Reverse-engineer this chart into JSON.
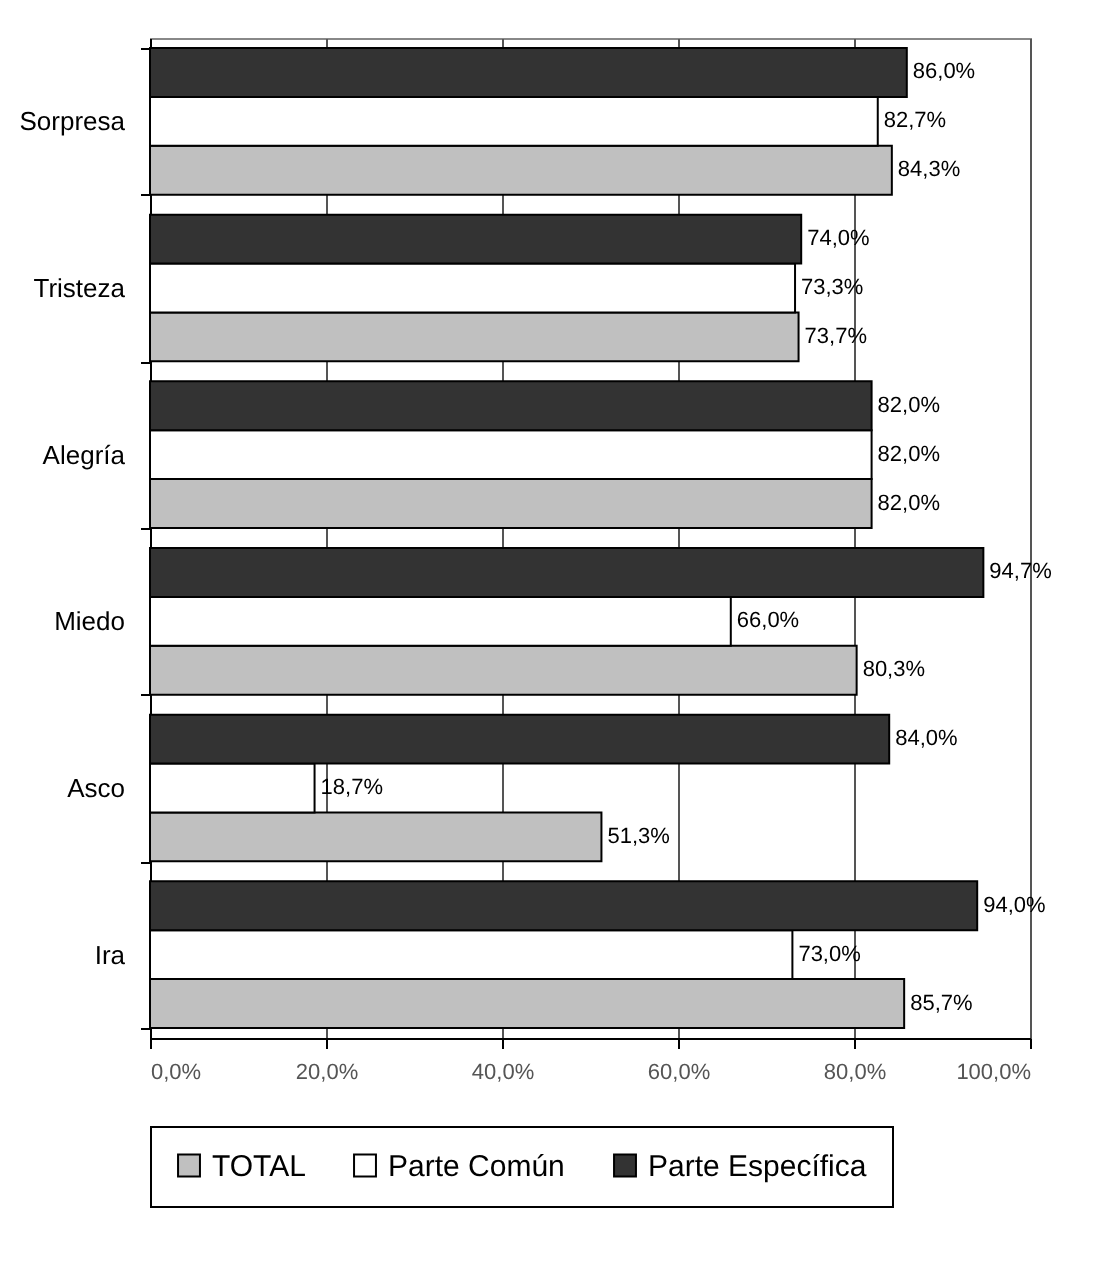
{
  "chart_data": {
    "type": "bar",
    "orientation": "horizontal",
    "categories": [
      "Sorpresa",
      "Tristeza",
      "Alegría",
      "Miedo",
      "Asco",
      "Ira"
    ],
    "series": [
      {
        "name": "TOTAL",
        "color": "#c0c0c0",
        "values": [
          84.3,
          73.7,
          82.0,
          80.3,
          51.3,
          85.7
        ],
        "value_labels": [
          "84,3%",
          "73,7%",
          "82,0%",
          "80,3%",
          "51,3%",
          "85,7%"
        ]
      },
      {
        "name": "Parte Común",
        "color": "#ffffff",
        "values": [
          82.7,
          73.3,
          82.0,
          66.0,
          18.7,
          73.0
        ],
        "value_labels": [
          "82,7%",
          "73,3%",
          "82,0%",
          "66,0%",
          "18,7%",
          "73,0%"
        ]
      },
      {
        "name": "Parte Específica",
        "color": "#333333",
        "values": [
          86.0,
          74.0,
          82.0,
          94.7,
          84.0,
          94.0
        ],
        "value_labels": [
          "86,0%",
          "74,0%",
          "82,0%",
          "94,7%",
          "84,0%",
          "94,0%"
        ]
      }
    ],
    "xlim": [
      0,
      100
    ],
    "xticks": [
      {
        "value": 0,
        "label": "0,0%"
      },
      {
        "value": 20,
        "label": "20,0%"
      },
      {
        "value": 40,
        "label": "40,0%"
      },
      {
        "value": 60,
        "label": "60,0%"
      },
      {
        "value": 80,
        "label": "80,0%"
      },
      {
        "value": 100,
        "label": "100,0%"
      }
    ],
    "grid": "x",
    "legend": "bottom"
  }
}
